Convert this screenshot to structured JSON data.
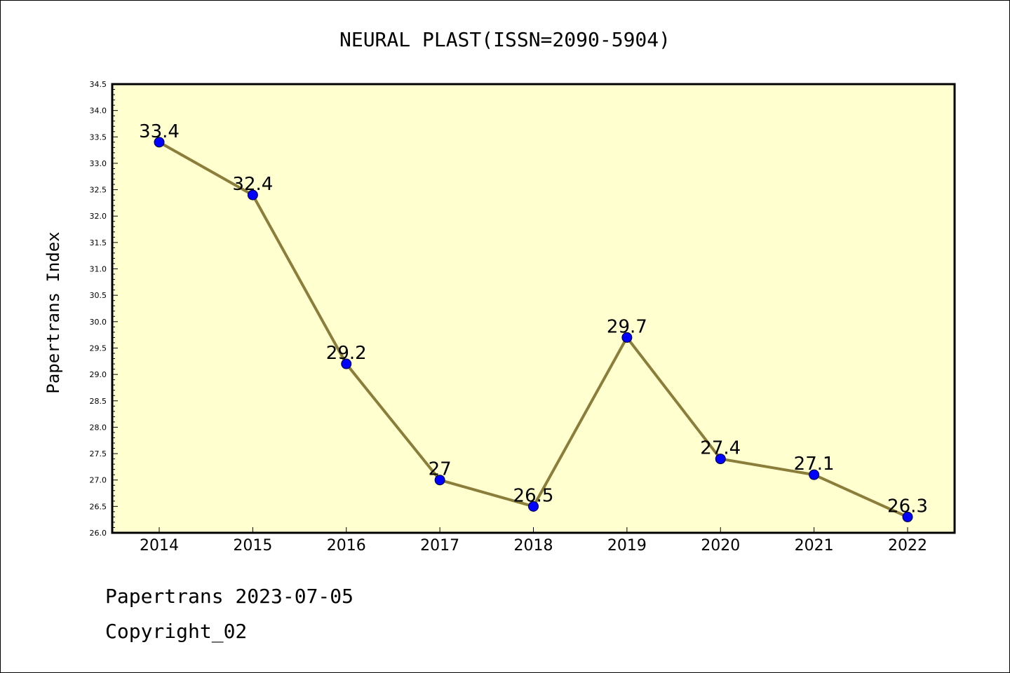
{
  "chart_data": {
    "type": "line",
    "title": "NEURAL PLAST(ISSN=2090-5904)",
    "xlabel": "",
    "ylabel": "Papertrans Index",
    "categories": [
      "2014",
      "2015",
      "2016",
      "2017",
      "2018",
      "2019",
      "2020",
      "2021",
      "2022"
    ],
    "series": [
      {
        "values": [
          33.4,
          32.4,
          29.2,
          27,
          26.5,
          29.7,
          27.4,
          27.1,
          26.3
        ],
        "labels": [
          "33.4",
          "32.4",
          "29.2",
          "27",
          "26.5",
          "29.7",
          "27.4",
          "27.1",
          "26.3"
        ]
      }
    ],
    "ylim": [
      26.0,
      34.5
    ],
    "yticks": [
      "26.0",
      "26.5",
      "27.0",
      "27.5",
      "28.0",
      "28.5",
      "29.0",
      "29.5",
      "30.0",
      "30.5",
      "31.0",
      "31.5",
      "32.0",
      "32.5",
      "33.0",
      "33.5",
      "34.0",
      "34.5"
    ],
    "grid": false,
    "colors": {
      "plot_bg": "#ffffd0",
      "line": "#8b7d3a",
      "marker": "#0000ff"
    }
  },
  "footer": {
    "line1": "Papertrans 2023-07-05",
    "line2": "Copyright_02"
  }
}
